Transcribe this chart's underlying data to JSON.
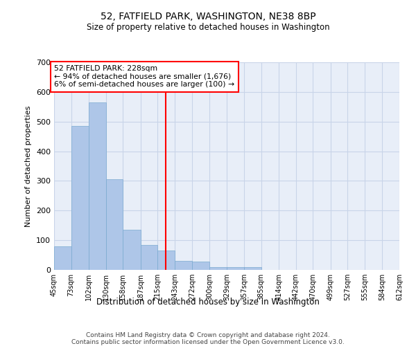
{
  "title": "52, FATFIELD PARK, WASHINGTON, NE38 8BP",
  "subtitle": "Size of property relative to detached houses in Washington",
  "xlabel": "Distribution of detached houses by size in Washington",
  "ylabel": "Number of detached properties",
  "footer_line1": "Contains HM Land Registry data © Crown copyright and database right 2024.",
  "footer_line2": "Contains public sector information licensed under the Open Government Licence v3.0.",
  "bar_color": "#aec6e8",
  "bar_edge_color": "#7aaad0",
  "grid_color": "#c8d4e8",
  "background_color": "#e8eef8",
  "vline_x": 228,
  "vline_color": "red",
  "annotation_text": "52 FATFIELD PARK: 228sqm\n← 94% of detached houses are smaller (1,676)\n6% of semi-detached houses are larger (100) →",
  "annotation_box_color": "white",
  "annotation_box_edge": "red",
  "bin_edges": [
    45,
    73,
    102,
    130,
    158,
    187,
    215,
    243,
    272,
    300,
    329,
    357,
    385,
    414,
    442,
    470,
    499,
    527,
    555,
    584,
    612
  ],
  "bar_heights": [
    80,
    485,
    565,
    305,
    135,
    85,
    65,
    30,
    28,
    10,
    10,
    10,
    0,
    0,
    0,
    0,
    0,
    0,
    0,
    0
  ],
  "ylim": [
    0,
    700
  ],
  "yticks": [
    0,
    100,
    200,
    300,
    400,
    500,
    600,
    700
  ],
  "tick_labels": [
    "45sqm",
    "73sqm",
    "102sqm",
    "130sqm",
    "158sqm",
    "187sqm",
    "215sqm",
    "243sqm",
    "272sqm",
    "300sqm",
    "329sqm",
    "357sqm",
    "385sqm",
    "414sqm",
    "442sqm",
    "470sqm",
    "499sqm",
    "527sqm",
    "555sqm",
    "584sqm",
    "612sqm"
  ]
}
